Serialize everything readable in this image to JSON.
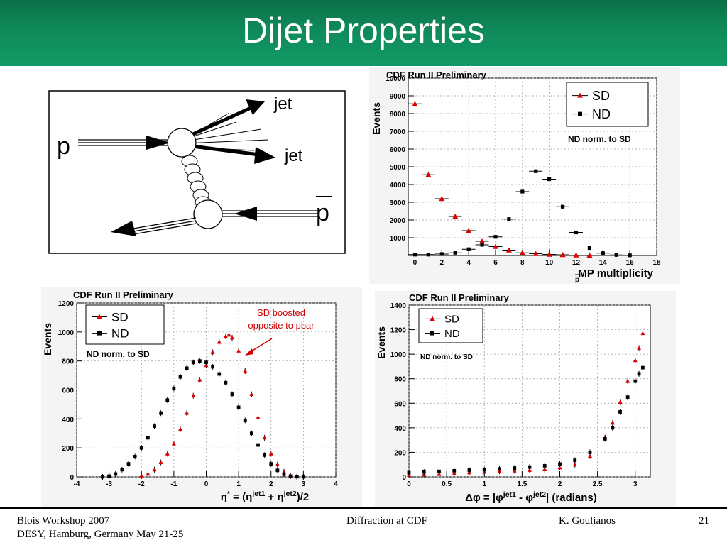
{
  "slide": {
    "title": "Dijet Properties"
  },
  "diagram": {
    "proton_label": "p",
    "antiproton_label": "p",
    "jet1_label": "jet",
    "jet2_label": "jet"
  },
  "footer": {
    "left_line1": "Blois Workshop 2007",
    "left_line2": "DESY, Hamburg, Germany May 21-25",
    "center": "Diffraction at CDF",
    "author": "K. Goulianos",
    "page": "21"
  },
  "colors": {
    "header": "#0f8a5a",
    "sd": "#e00000",
    "nd": "#000000",
    "annotation": "#d00000"
  },
  "chart_data": [
    {
      "type": "scatter",
      "title": "CDF Run II Preliminary",
      "xlabel": "MP multiplicity",
      "xlabel_sub": "p",
      "ylabel": "Events",
      "xlim": [
        -0.5,
        18
      ],
      "ylim": [
        0,
        10000
      ],
      "xticks": [
        0,
        2,
        4,
        6,
        8,
        10,
        12,
        14,
        16,
        18
      ],
      "yticks": [
        1000,
        2000,
        3000,
        4000,
        5000,
        6000,
        7000,
        8000,
        9000,
        10000
      ],
      "annotation": "ND norm. to SD",
      "legend_position": "top-right",
      "series": [
        {
          "name": "SD",
          "marker": "triangle",
          "color": "#e00000",
          "x": [
            0,
            1,
            2,
            3,
            4,
            5,
            6,
            7,
            8,
            9,
            10,
            11,
            12,
            13
          ],
          "y": [
            8550,
            4550,
            3200,
            2200,
            1400,
            800,
            500,
            300,
            150,
            100,
            60,
            40,
            20,
            10
          ]
        },
        {
          "name": "ND",
          "marker": "square",
          "color": "#000000",
          "x": [
            0,
            1,
            2,
            3,
            4,
            5,
            6,
            7,
            8,
            9,
            10,
            11,
            12,
            13,
            14,
            15,
            16
          ],
          "y": [
            50,
            50,
            80,
            150,
            350,
            600,
            1050,
            2050,
            3600,
            4750,
            4300,
            2750,
            1300,
            420,
            130,
            30,
            10
          ]
        }
      ]
    },
    {
      "type": "scatter",
      "title": "CDF Run II Preliminary",
      "xlabel": "η* = (η^jet1 + η^jet2)/2",
      "ylabel": "Events",
      "xlim": [
        -4,
        4
      ],
      "ylim": [
        0,
        1200
      ],
      "xticks": [
        -4,
        -3,
        -2,
        -1,
        0,
        1,
        2,
        3,
        4
      ],
      "yticks": [
        0,
        200,
        400,
        600,
        800,
        1000,
        1200
      ],
      "annotation": "ND norm. to SD",
      "callout": "SD boosted opposite to pbar",
      "legend_position": "top-left",
      "series": [
        {
          "name": "SD",
          "marker": "triangle",
          "color": "#e00000",
          "x": [
            -2.0,
            -1.8,
            -1.6,
            -1.4,
            -1.2,
            -1.0,
            -0.8,
            -0.6,
            -0.4,
            -0.2,
            0.0,
            0.2,
            0.4,
            0.6,
            0.7,
            0.8,
            1.0,
            1.2,
            1.4,
            1.6,
            1.8,
            2.0,
            2.2,
            2.4,
            2.6,
            2.8
          ],
          "y": [
            5,
            20,
            50,
            100,
            160,
            230,
            330,
            440,
            560,
            670,
            770,
            860,
            930,
            970,
            980,
            960,
            870,
            730,
            570,
            410,
            270,
            160,
            85,
            35,
            10,
            2
          ]
        },
        {
          "name": "ND",
          "marker": "square",
          "color": "#000000",
          "x": [
            -3.2,
            -3.0,
            -2.8,
            -2.6,
            -2.4,
            -2.2,
            -2.0,
            -1.8,
            -1.6,
            -1.4,
            -1.2,
            -1.0,
            -0.8,
            -0.6,
            -0.4,
            -0.2,
            0.0,
            0.2,
            0.4,
            0.6,
            0.8,
            1.0,
            1.2,
            1.4,
            1.6,
            1.8,
            2.0,
            2.2,
            2.4,
            2.6,
            2.8,
            3.0
          ],
          "y": [
            0,
            5,
            20,
            50,
            90,
            140,
            200,
            270,
            350,
            440,
            530,
            610,
            690,
            750,
            790,
            800,
            790,
            760,
            710,
            650,
            570,
            480,
            390,
            300,
            220,
            150,
            90,
            45,
            18,
            5,
            1,
            0
          ]
        }
      ]
    },
    {
      "type": "scatter",
      "title": "CDF Run II Preliminary",
      "xlabel": "Δφ = |φ^jet1 - φ^jet2| (radians)",
      "ylabel": "Events",
      "xlim": [
        0,
        3.2
      ],
      "ylim": [
        0,
        1400
      ],
      "xticks": [
        0,
        0.5,
        1,
        1.5,
        2,
        2.5,
        3
      ],
      "yticks": [
        0,
        200,
        400,
        600,
        800,
        1000,
        1200,
        1400
      ],
      "annotation": "ND norm. to SD",
      "legend_position": "top-left",
      "series": [
        {
          "name": "SD",
          "marker": "triangle",
          "color": "#e00000",
          "x": [
            0.0,
            0.2,
            0.4,
            0.6,
            0.8,
            1.0,
            1.2,
            1.4,
            1.6,
            1.8,
            2.0,
            2.2,
            2.4,
            2.6,
            2.7,
            2.8,
            2.9,
            3.0,
            3.05,
            3.1
          ],
          "y": [
            15,
            18,
            22,
            28,
            35,
            40,
            45,
            50,
            55,
            60,
            75,
            100,
            170,
            320,
            440,
            610,
            780,
            950,
            1050,
            1170
          ]
        },
        {
          "name": "ND",
          "marker": "square",
          "color": "#000000",
          "x": [
            0.0,
            0.2,
            0.4,
            0.6,
            0.8,
            1.0,
            1.2,
            1.4,
            1.6,
            1.8,
            2.0,
            2.2,
            2.4,
            2.6,
            2.7,
            2.8,
            2.9,
            3.0,
            3.05,
            3.1
          ],
          "y": [
            35,
            40,
            45,
            50,
            55,
            60,
            65,
            72,
            80,
            90,
            105,
            135,
            200,
            310,
            400,
            530,
            650,
            780,
            840,
            890
          ]
        }
      ]
    }
  ]
}
